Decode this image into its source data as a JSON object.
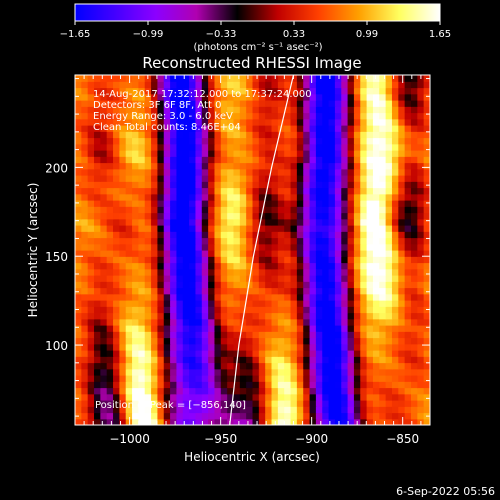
{
  "chart_data": {
    "type": "heatmap",
    "title": "Reconstructed RHESSI Image",
    "xlabel": "Heliocentric X (arcsec)",
    "ylabel": "Heliocentric Y (arcsec)",
    "xlim": [
      -1030,
      -835
    ],
    "ylim": [
      55,
      252
    ],
    "x_ticks": [
      -1000,
      -950,
      -900,
      -850
    ],
    "x_tick_labels": [
      "−1000",
      "−950",
      "−900",
      "−850"
    ],
    "y_ticks": [
      100,
      150,
      200
    ],
    "y_tick_labels": [
      "100",
      "150",
      "200"
    ],
    "colorbar": {
      "min": -1.65,
      "max": 1.65,
      "tick_values": [
        -1.65,
        -0.99,
        -0.33,
        0.33,
        0.99,
        1.65
      ],
      "tick_labels": [
        "−1.65",
        "−0.99",
        "−0.33",
        "0.33",
        "0.99",
        "1.65"
      ],
      "unit_label": "(photons cm⁻² s⁻¹ asec⁻²)"
    },
    "annotations": [
      "14-Aug-2017 17:32:12.000 to 17:37:24.000",
      "Detectors: 3F 6F 8F, Att 0",
      "Energy Range: 3.0 - 6.0 keV",
      "Clean   Total counts: 8.46E+04"
    ],
    "peak_label": "Position of Peak = [−856,140]",
    "peak_position": [
      -856,
      140
    ],
    "limb_curve": [
      [
        -945,
        55
      ],
      [
        -940,
        100
      ],
      [
        -932,
        150
      ],
      [
        -922,
        200
      ],
      [
        -910,
        252
      ]
    ],
    "ridges": [
      {
        "kind": "bright",
        "points": [
          [
            -1010,
            252
          ],
          [
            -1005,
            210
          ],
          [
            -1012,
            170
          ],
          [
            -1008,
            130
          ],
          [
            -1000,
            90
          ],
          [
            -995,
            55
          ]
        ]
      },
      {
        "kind": "dark",
        "points": [
          [
            -975,
            252
          ],
          [
            -968,
            210
          ],
          [
            -972,
            170
          ],
          [
            -965,
            130
          ],
          [
            -958,
            90
          ],
          [
            -952,
            55
          ]
        ]
      },
      {
        "kind": "bright",
        "points": [
          [
            -935,
            252
          ],
          [
            -932,
            210
          ],
          [
            -938,
            170
          ],
          [
            -932,
            130
          ],
          [
            -924,
            90
          ],
          [
            -918,
            55
          ]
        ]
      },
      {
        "kind": "dark",
        "points": [
          [
            -895,
            252
          ],
          [
            -894,
            210
          ],
          [
            -900,
            170
          ],
          [
            -895,
            130
          ],
          [
            -888,
            90
          ],
          [
            -882,
            55
          ]
        ]
      },
      {
        "kind": "bright",
        "points": [
          [
            -860,
            252
          ],
          [
            -855,
            210
          ],
          [
            -862,
            170
          ],
          [
            -856,
            140
          ],
          [
            -852,
            100
          ],
          [
            -848,
            55
          ]
        ]
      }
    ],
    "colors": {
      "scale": [
        "#0000ff",
        "#4400ff",
        "#8c00ff",
        "#b000b0",
        "#000000",
        "#c00000",
        "#ff4000",
        "#ffa000",
        "#ffff60",
        "#ffffff"
      ]
    }
  },
  "timestamp": "6-Sep-2022 05:56"
}
